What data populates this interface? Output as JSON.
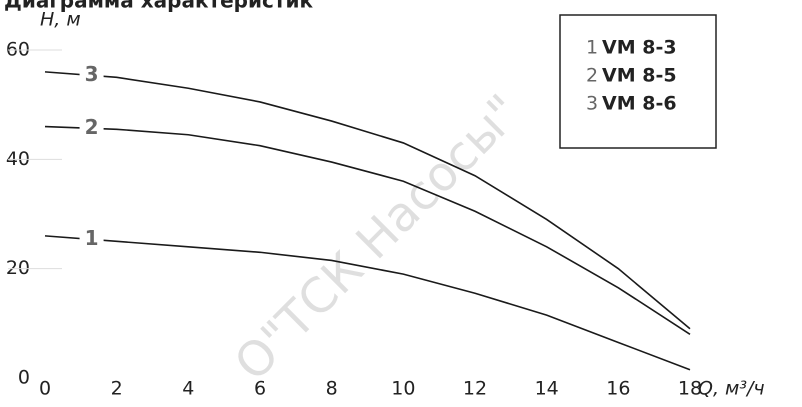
{
  "chart_data": {
    "type": "line",
    "title": "Диаграмма характеристик",
    "y_label": "H, м",
    "x_label": "Q, м³/ч",
    "watermark": "О\"ТСК Насосы\"",
    "x": [
      0,
      2,
      4,
      6,
      8,
      10,
      12,
      14,
      16,
      18
    ],
    "series": [
      {
        "name": "VM 8-3",
        "label": "1",
        "color": "#1a1a1a",
        "values": [
          26,
          25,
          24,
          23,
          21.5,
          19,
          15.5,
          11.5,
          6.5,
          1.5
        ]
      },
      {
        "name": "VM 8-5",
        "label": "2",
        "color": "#1a1a1a",
        "values": [
          46,
          45.5,
          44.5,
          42.5,
          39.5,
          36,
          30.5,
          24,
          16.5,
          8
        ]
      },
      {
        "name": "VM 8-6",
        "label": "3",
        "color": "#1a1a1a",
        "values": [
          56,
          55,
          53,
          50.5,
          47,
          43,
          37,
          29,
          20,
          9
        ]
      }
    ],
    "xlim": [
      0,
      18
    ],
    "xticks": [
      0,
      2,
      4,
      6,
      8,
      10,
      12,
      14,
      16,
      18
    ],
    "ylim": [
      0,
      60
    ],
    "yticks": [
      0,
      20,
      40,
      60
    ],
    "legend": "top-right"
  }
}
